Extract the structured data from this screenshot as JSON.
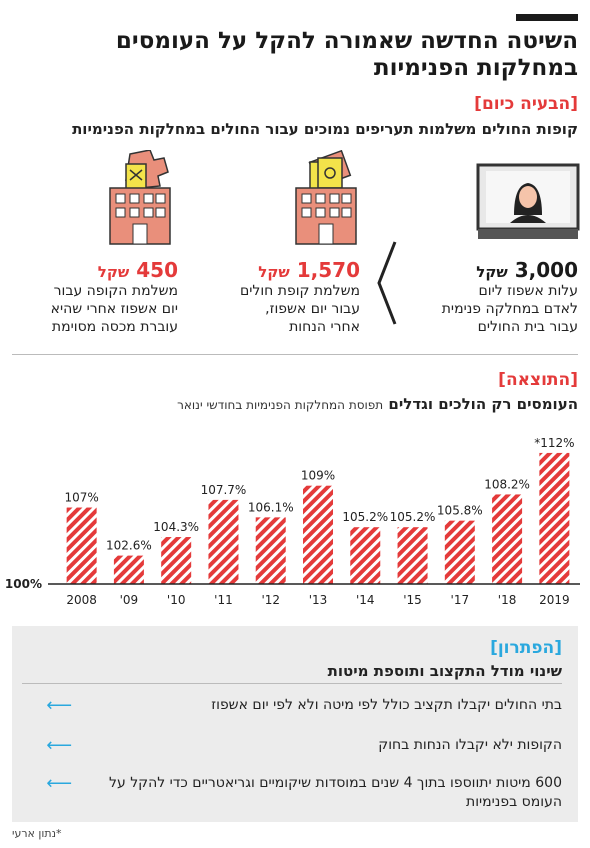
{
  "title": "השיטה החדשה שאמורה להקל על העומסים במחלקות הפנימיות",
  "problem": {
    "label": "[הבעיה כיום]",
    "subtitle": "קופות החולים משלמות תעריפים נמוכים עבור החולים במחלקות הפנימיות",
    "cost": {
      "amount": "3,000",
      "unit": "שקל",
      "lines": [
        "עלות אשפוז ליום",
        "לאדם במחלקה פנימית",
        "עבור בית החולים"
      ]
    },
    "payment": {
      "amount": "1,570",
      "unit": "שקל",
      "lines": [
        "משלמת קופת חולים",
        "עבור יום אשפוז,",
        "אחרי הנחות"
      ]
    },
    "discount": {
      "amount": "450",
      "unit": "שקל",
      "lines": [
        "משלמת הקופה עבור",
        "יום אשפוז אחרי שהיא",
        "עוברת מכסה מסוימת"
      ]
    }
  },
  "result": {
    "label": "[התוצאה]",
    "subtitle_bold": "העומסים רק הולכים וגדלים",
    "subtitle_light": "תפוסת המחלקות הפנימיות בחודשי ינואר"
  },
  "chart_data": {
    "type": "bar",
    "categories": [
      "2008",
      "'09",
      "'10",
      "'11",
      "'12",
      "'13",
      "'14",
      "'15",
      "'17",
      "'18",
      "2019"
    ],
    "values": [
      107,
      102.6,
      104.3,
      107.7,
      106.1,
      109,
      105.2,
      105.2,
      105.8,
      108.2,
      112
    ],
    "data_labels": [
      "107%",
      "102.6%",
      "104.3%",
      "107.7%",
      "106.1%",
      "109%",
      "105.2%",
      "105.2%",
      "105.8%",
      "108.2%",
      "*112%"
    ],
    "baseline_label": "100%",
    "ylim": [
      100,
      113
    ],
    "bar_color": "#e43a3a",
    "pattern": "diagonal-stripes"
  },
  "solution": {
    "label": "[הפתרון]",
    "subtitle": "שינוי מודל התקצוב ותוספת מיטות",
    "items": [
      "בתי החולים יקבלו תקציב כולל לפי מיטה ולא לפי יום אשפוז",
      "הקופות ילא יקבלו הנחות בחוק",
      "600 מיטות יתווספו בתוך 4 שנים במוסדות שיקומיים וגריאטריים כדי להקל על העומס בפנימיות"
    ]
  },
  "footnote": "*נתון ארעי",
  "colors": {
    "accent_red": "#e43a3a",
    "accent_blue": "#2aa8de",
    "building": "#e98f7b",
    "money": "#f3e34a"
  },
  "icons": [
    "woman-in-monitor-icon",
    "building-with-money-icon",
    "building-with-torn-money-icon",
    "left-arrow-icon"
  ]
}
